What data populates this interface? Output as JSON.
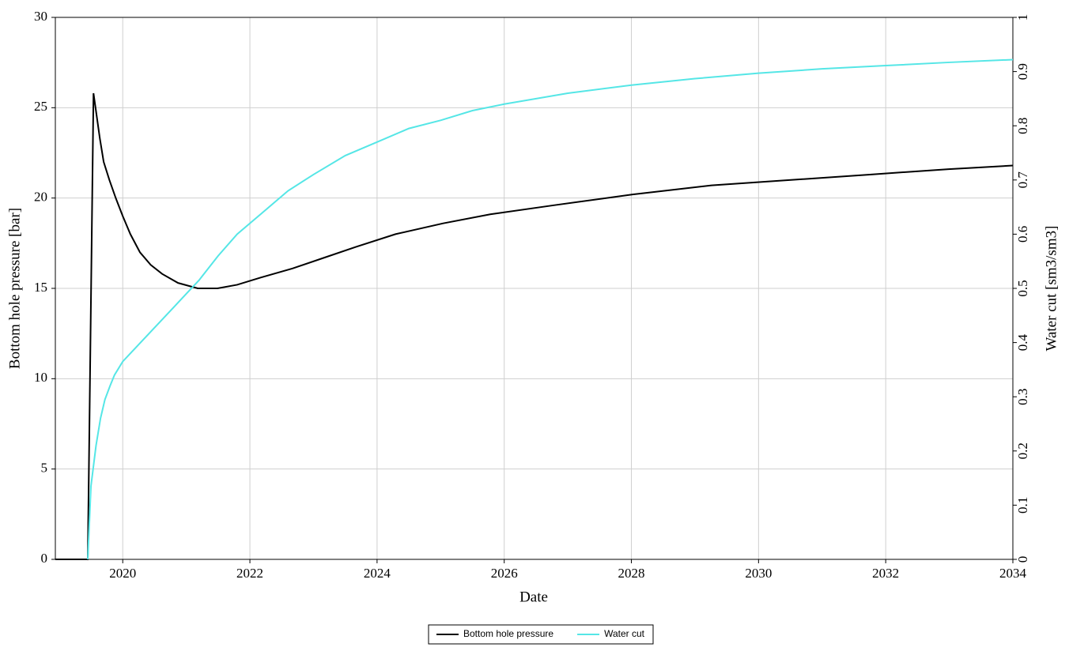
{
  "chart_data": {
    "type": "line",
    "xlabel": "Date",
    "ylabel": "Bottom hole pressure [bar]",
    "y2label": "Water cut [sm3/sm3]",
    "xlim": [
      2018.94,
      2034
    ],
    "xticks": [
      2020,
      2022,
      2024,
      2026,
      2028,
      2030,
      2032,
      2034
    ],
    "ylim": [
      0,
      30
    ],
    "yticks": [
      0,
      5,
      10,
      15,
      20,
      25,
      30
    ],
    "y2lim": [
      0,
      1
    ],
    "y2ticks": [
      0,
      0.1,
      0.2,
      0.3,
      0.4,
      0.5,
      0.6,
      0.7,
      0.8,
      0.9,
      1
    ],
    "grid": true,
    "legend": "bottom",
    "series": [
      {
        "name": "Bottom hole pressure",
        "color": "#000000",
        "x": [
          2018.94,
          2019.45,
          2019.54,
          2019.64,
          2019.7,
          2019.79,
          2019.89,
          2020.0,
          2020.12,
          2020.27,
          2020.44,
          2020.62,
          2020.87,
          2021.18,
          2021.49,
          2021.8,
          2022.17,
          2022.67,
          2023.17,
          2023.67,
          2024.29,
          2025.04,
          2025.78,
          2026.78,
          2028.02,
          2029.26,
          2030.51,
          2031.75,
          2032.99,
          2034.0
        ],
        "values": [
          0,
          0,
          25.8,
          23.3,
          22.0,
          21.0,
          20.0,
          19.0,
          18.0,
          17.0,
          16.3,
          15.8,
          15.3,
          15.0,
          15.0,
          15.2,
          15.6,
          16.1,
          16.7,
          17.3,
          18.0,
          18.6,
          19.1,
          19.6,
          20.2,
          20.7,
          21.0,
          21.3,
          21.6,
          21.8
        ]
      },
      {
        "name": "Water cut",
        "color": "#55e6e6",
        "axis": "y2",
        "x": [
          2019.45,
          2019.5,
          2019.58,
          2019.65,
          2019.72,
          2019.8,
          2019.87,
          2020.0,
          2020.2,
          2020.4,
          2020.6,
          2020.8,
          2021.0,
          2021.2,
          2021.5,
          2021.8,
          2022.2,
          2022.6,
          2023.0,
          2023.5,
          2024.0,
          2024.5,
          2025.0,
          2025.5,
          2026.0,
          2027.0,
          2028.0,
          2029.0,
          2030.0,
          2031.0,
          2032.0,
          2033.0,
          2034.0
        ],
        "values": [
          0,
          0.135,
          0.21,
          0.26,
          0.295,
          0.32,
          0.34,
          0.365,
          0.39,
          0.415,
          0.44,
          0.465,
          0.49,
          0.515,
          0.56,
          0.6,
          0.64,
          0.68,
          0.71,
          0.745,
          0.77,
          0.795,
          0.81,
          0.828,
          0.84,
          0.86,
          0.875,
          0.887,
          0.897,
          0.905,
          0.911,
          0.917,
          0.922
        ]
      }
    ]
  }
}
